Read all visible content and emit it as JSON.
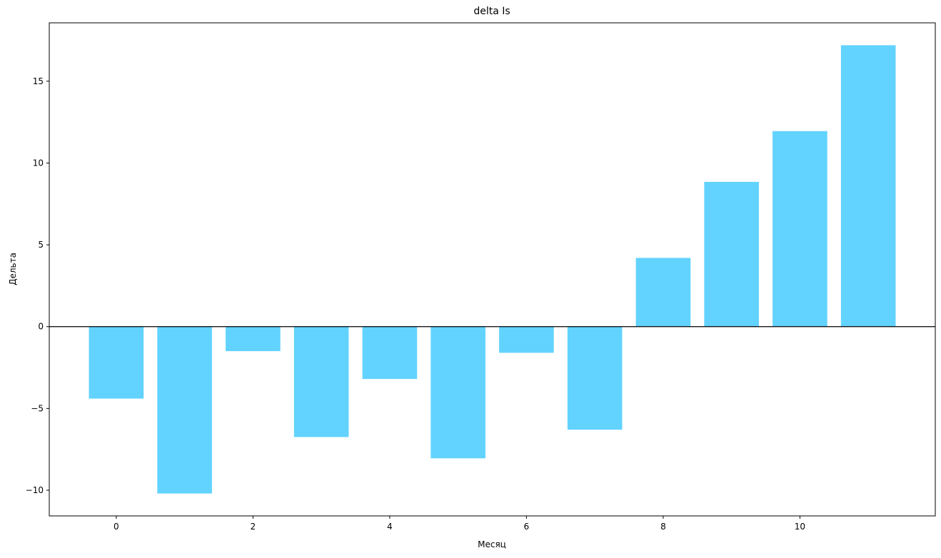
{
  "chart_data": {
    "type": "bar",
    "title": "delta Is",
    "xlabel": "Месяц",
    "ylabel": "Дельта",
    "x": [
      0,
      1,
      2,
      3,
      4,
      5,
      6,
      7,
      8,
      9,
      10,
      11
    ],
    "values": [
      -4.4,
      -10.2,
      -1.5,
      -6.75,
      -3.2,
      -8.05,
      -1.6,
      -6.3,
      4.2,
      8.85,
      11.95,
      17.2
    ],
    "xlim": [
      -0.98,
      11.98
    ],
    "ylim": [
      -11.57,
      18.57
    ],
    "xticks": [
      0,
      2,
      4,
      6,
      8,
      10
    ],
    "xtick_labels": [
      "0",
      "2",
      "4",
      "6",
      "8",
      "10"
    ],
    "yticks": [
      -10,
      -5,
      0,
      5,
      10,
      15
    ],
    "ytick_labels": [
      "−10",
      "−5",
      "0",
      "5",
      "10",
      "15"
    ],
    "bar_color": "#62d3ff",
    "zero_line": true,
    "grid": false,
    "legend": "none"
  }
}
